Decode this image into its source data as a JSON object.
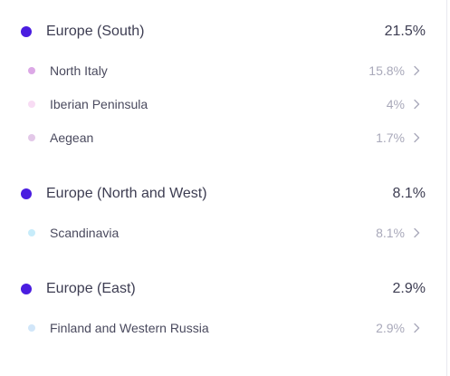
{
  "colors": {
    "region_dot": "#4a1de0",
    "italy_dot": "#dca8e6",
    "iberian_dot": "#f8dcf4",
    "aegean_dot": "#e3c8e8",
    "scandinavia_dot": "#c7ecfa",
    "finland_dot": "#d1e6f9"
  },
  "regions": [
    {
      "name": "Europe (South)",
      "pct": "21.5%",
      "items": [
        {
          "name": "North Italy",
          "pct": "15.8%"
        },
        {
          "name": "Iberian Peninsula",
          "pct": "4%"
        },
        {
          "name": "Aegean",
          "pct": "1.7%"
        }
      ]
    },
    {
      "name": "Europe (North and West)",
      "pct": "8.1%",
      "items": [
        {
          "name": "Scandinavia",
          "pct": "8.1%"
        }
      ]
    },
    {
      "name": "Europe (East)",
      "pct": "2.9%",
      "items": [
        {
          "name": "Finland and Western Russia",
          "pct": "2.9%"
        }
      ]
    }
  ],
  "icons": {
    "region_marker": "circle-dot-icon",
    "sub_marker": "small-circle-dot-icon",
    "row_action": "chevron-right-icon"
  }
}
